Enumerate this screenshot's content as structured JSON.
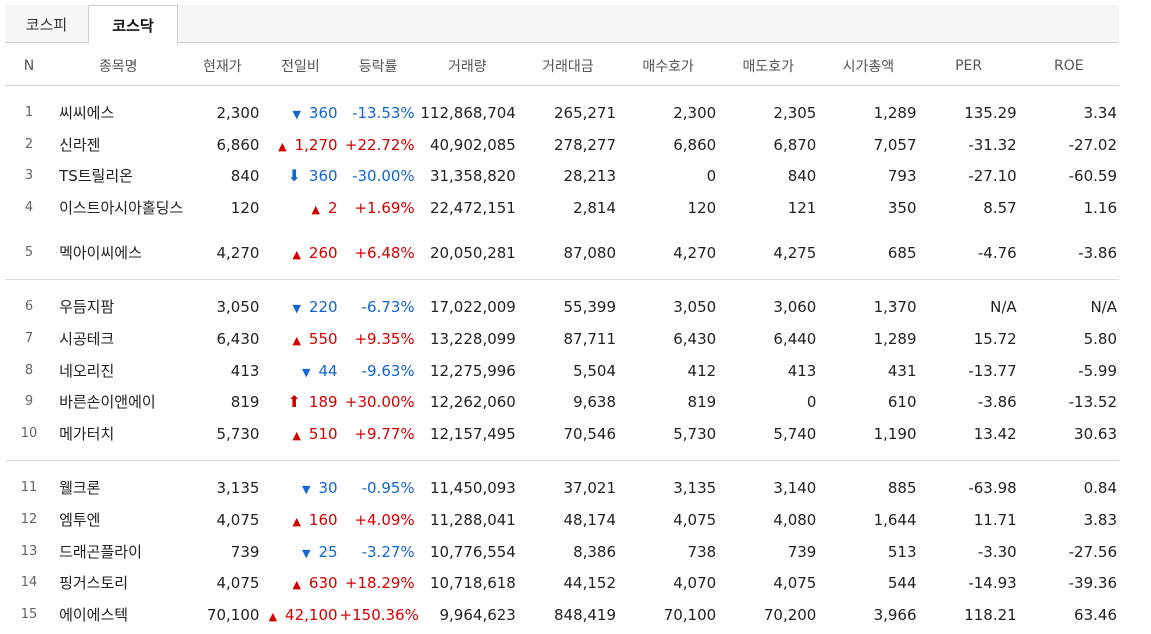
{
  "tabs": [
    "코스피",
    "코스닥"
  ],
  "columns": [
    "N",
    "종목명",
    "현재가",
    "전일비",
    "등락률",
    "거래량",
    "거래대금",
    "매수호가",
    "매도호가",
    "시가총액",
    "PER",
    "ROE"
  ],
  "colors": {
    "up": "#d30000",
    "down": "#1464d2"
  },
  "groups": [
    [
      {
        "n": "1",
        "name": "씨씨에스",
        "price": "2,300",
        "dir": "down",
        "icon": "triangle-down-icon",
        "glyph": "▼",
        "diff": "360",
        "rate": "-13.53%",
        "volume": "112,868,704",
        "amount": "265,271",
        "bid": "2,300",
        "ask": "2,305",
        "cap": "1,289",
        "per": "135.29",
        "roe": "3.34"
      },
      {
        "n": "2",
        "name": "신라젠",
        "price": "6,860",
        "dir": "up",
        "icon": "triangle-up-icon",
        "glyph": "▲",
        "diff": "1,270",
        "rate": "+22.72%",
        "volume": "40,902,085",
        "amount": "278,277",
        "bid": "6,860",
        "ask": "6,870",
        "cap": "7,057",
        "per": "-31.32",
        "roe": "-27.02"
      },
      {
        "n": "3",
        "name": "TS트릴리온",
        "price": "840",
        "dir": "down",
        "icon": "lower-limit-arrow-icon",
        "glyph": "⬇",
        "diff": "360",
        "rate": "-30.00%",
        "volume": "31,358,820",
        "amount": "28,213",
        "bid": "0",
        "ask": "840",
        "cap": "793",
        "per": "-27.10",
        "roe": "-60.59"
      },
      {
        "n": "4",
        "name": "이스트아시아홀딩스",
        "price": "120",
        "dir": "up",
        "icon": "triangle-up-icon",
        "glyph": "▲",
        "diff": "2",
        "rate": "+1.69%",
        "volume": "22,472,151",
        "amount": "2,814",
        "bid": "120",
        "ask": "121",
        "cap": "350",
        "per": "8.57",
        "roe": "1.16"
      },
      {
        "n": "5",
        "name": "멕아이씨에스",
        "price": "4,270",
        "dir": "up",
        "icon": "triangle-up-icon",
        "glyph": "▲",
        "diff": "260",
        "rate": "+6.48%",
        "volume": "20,050,281",
        "amount": "87,080",
        "bid": "4,270",
        "ask": "4,275",
        "cap": "685",
        "per": "-4.76",
        "roe": "-3.86"
      }
    ],
    [
      {
        "n": "6",
        "name": "우듬지팜",
        "price": "3,050",
        "dir": "down",
        "icon": "triangle-down-icon",
        "glyph": "▼",
        "diff": "220",
        "rate": "-6.73%",
        "volume": "17,022,009",
        "amount": "55,399",
        "bid": "3,050",
        "ask": "3,060",
        "cap": "1,370",
        "per": "N/A",
        "roe": "N/A"
      },
      {
        "n": "7",
        "name": "시공테크",
        "price": "6,430",
        "dir": "up",
        "icon": "triangle-up-icon",
        "glyph": "▲",
        "diff": "550",
        "rate": "+9.35%",
        "volume": "13,228,099",
        "amount": "87,711",
        "bid": "6,430",
        "ask": "6,440",
        "cap": "1,289",
        "per": "15.72",
        "roe": "5.80"
      },
      {
        "n": "8",
        "name": "네오리진",
        "price": "413",
        "dir": "down",
        "icon": "triangle-down-icon",
        "glyph": "▼",
        "diff": "44",
        "rate": "-9.63%",
        "volume": "12,275,996",
        "amount": "5,504",
        "bid": "412",
        "ask": "413",
        "cap": "431",
        "per": "-13.77",
        "roe": "-5.99"
      },
      {
        "n": "9",
        "name": "바른손이앤에이",
        "price": "819",
        "dir": "up",
        "icon": "upper-limit-arrow-icon",
        "glyph": "⬆",
        "diff": "189",
        "rate": "+30.00%",
        "volume": "12,262,060",
        "amount": "9,638",
        "bid": "819",
        "ask": "0",
        "cap": "610",
        "per": "-3.86",
        "roe": "-13.52"
      },
      {
        "n": "10",
        "name": "메가터치",
        "price": "5,730",
        "dir": "up",
        "icon": "triangle-up-icon",
        "glyph": "▲",
        "diff": "510",
        "rate": "+9.77%",
        "volume": "12,157,495",
        "amount": "70,546",
        "bid": "5,730",
        "ask": "5,740",
        "cap": "1,190",
        "per": "13.42",
        "roe": "30.63"
      }
    ],
    [
      {
        "n": "11",
        "name": "웰크론",
        "price": "3,135",
        "dir": "down",
        "icon": "triangle-down-icon",
        "glyph": "▼",
        "diff": "30",
        "rate": "-0.95%",
        "volume": "11,450,093",
        "amount": "37,021",
        "bid": "3,135",
        "ask": "3,140",
        "cap": "885",
        "per": "-63.98",
        "roe": "0.84"
      },
      {
        "n": "12",
        "name": "엠투엔",
        "price": "4,075",
        "dir": "up",
        "icon": "triangle-up-icon",
        "glyph": "▲",
        "diff": "160",
        "rate": "+4.09%",
        "volume": "11,288,041",
        "amount": "48,174",
        "bid": "4,075",
        "ask": "4,080",
        "cap": "1,644",
        "per": "11.71",
        "roe": "3.83"
      },
      {
        "n": "13",
        "name": "드래곤플라이",
        "price": "739",
        "dir": "down",
        "icon": "triangle-down-icon",
        "glyph": "▼",
        "diff": "25",
        "rate": "-3.27%",
        "volume": "10,776,554",
        "amount": "8,386",
        "bid": "738",
        "ask": "739",
        "cap": "513",
        "per": "-3.30",
        "roe": "-27.56"
      },
      {
        "n": "14",
        "name": "핑거스토리",
        "price": "4,075",
        "dir": "up",
        "icon": "triangle-up-icon",
        "glyph": "▲",
        "diff": "630",
        "rate": "+18.29%",
        "volume": "10,718,618",
        "amount": "44,152",
        "bid": "4,070",
        "ask": "4,075",
        "cap": "544",
        "per": "-14.93",
        "roe": "-39.36"
      },
      {
        "n": "15",
        "name": "에이에스텍",
        "price": "70,100",
        "dir": "up",
        "icon": "triangle-up-icon",
        "glyph": "▲",
        "diff": "42,100",
        "rate": "+150.36%",
        "volume": "9,964,623",
        "amount": "848,419",
        "bid": "70,100",
        "ask": "70,200",
        "cap": "3,966",
        "per": "118.21",
        "roe": "63.46"
      }
    ]
  ]
}
